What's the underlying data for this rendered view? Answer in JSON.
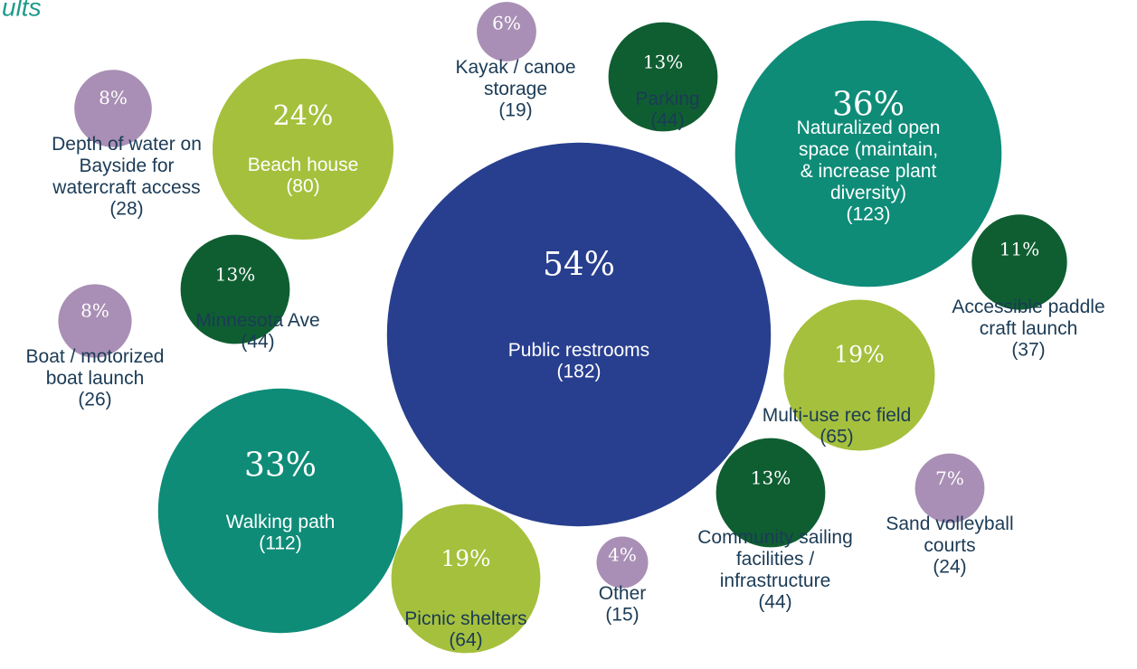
{
  "chart_data": {
    "type": "packed-bubble",
    "title": "ults",
    "categories": [
      "Public restrooms",
      "Naturalized open space (maintain, & increase plant diversity)",
      "Walking path",
      "Beach house",
      "Multi-use rec field",
      "Picnic shelters",
      "Parking",
      "Minnesota Ave",
      "Community sailing facilities / infrastructure",
      "Accessible paddle craft launch",
      "Depth of water on Bayside for watercraft access",
      "Boat / motorized boat launch",
      "Sand volleyball courts",
      "Kayak / canoe storage",
      "Other"
    ],
    "values": [
      182,
      123,
      112,
      80,
      65,
      64,
      44,
      44,
      44,
      37,
      28,
      26,
      24,
      19,
      15
    ],
    "value_labels": [
      "(182)",
      "(123)",
      "(112)",
      "(80)",
      "(65)",
      "(64)",
      "(44)",
      "(44)",
      "(44)",
      "(37)",
      "(28)",
      "(26)",
      "(24)",
      "(19)",
      "(15)"
    ],
    "percents": [
      54,
      36,
      33,
      24,
      19,
      19,
      13,
      13,
      13,
      11,
      8,
      8,
      7,
      6,
      4
    ],
    "percent_labels": [
      "54%",
      "36%",
      "33%",
      "24%",
      "19%",
      "19%",
      "13%",
      "13%",
      "13%",
      "11%",
      "8%",
      "8%",
      "7%",
      "6%",
      "4%"
    ],
    "colors": [
      "#283f8f",
      "#0e8c78",
      "#0e8c78",
      "#a5c03c",
      "#a5c03c",
      "#a5c03c",
      "#0f5e32",
      "#0f5e32",
      "#0f5e32",
      "#0f5e32",
      "#a98fb5",
      "#a98fb5",
      "#a98fb5",
      "#a98fb5",
      "#a98fb5"
    ]
  }
}
